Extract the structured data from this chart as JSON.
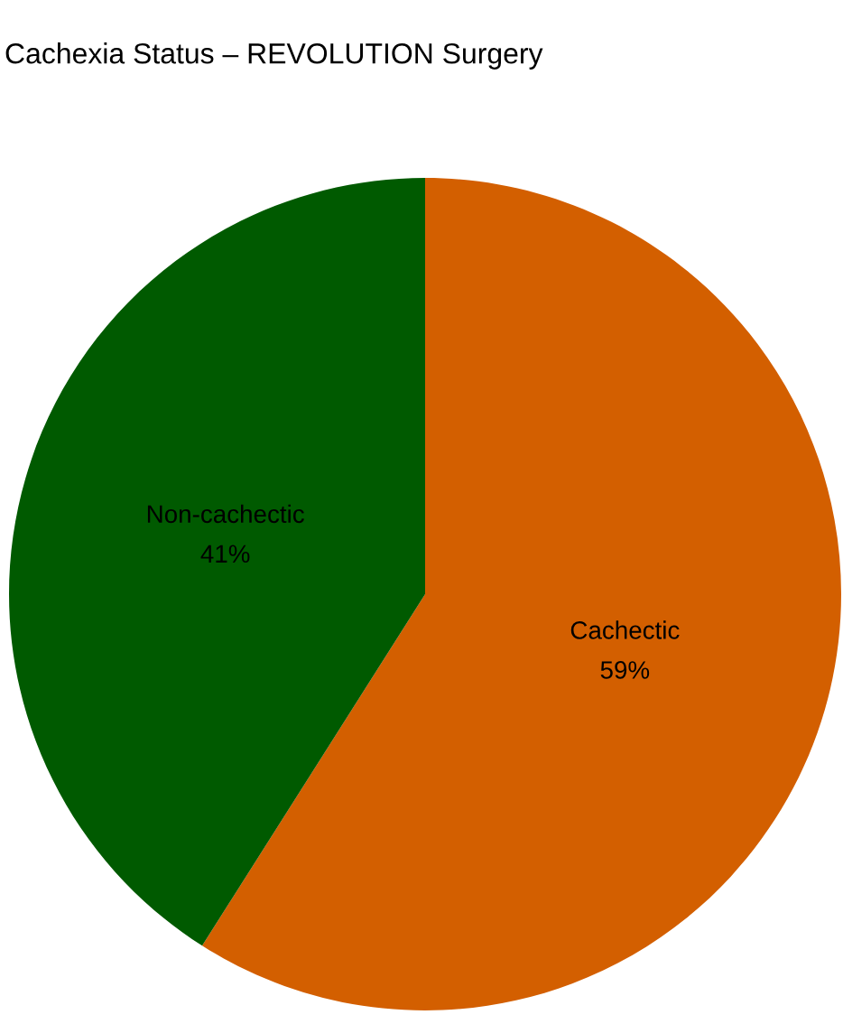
{
  "chart_data": {
    "type": "pie",
    "title": "Cachexia Status – REVOLUTION Surgery",
    "categories": [
      "Cachectic",
      "Non-cachectic"
    ],
    "values": [
      59,
      41
    ],
    "colors": [
      "#d35f00",
      "#005a00"
    ],
    "value_labels": [
      "59%",
      "41%"
    ]
  }
}
